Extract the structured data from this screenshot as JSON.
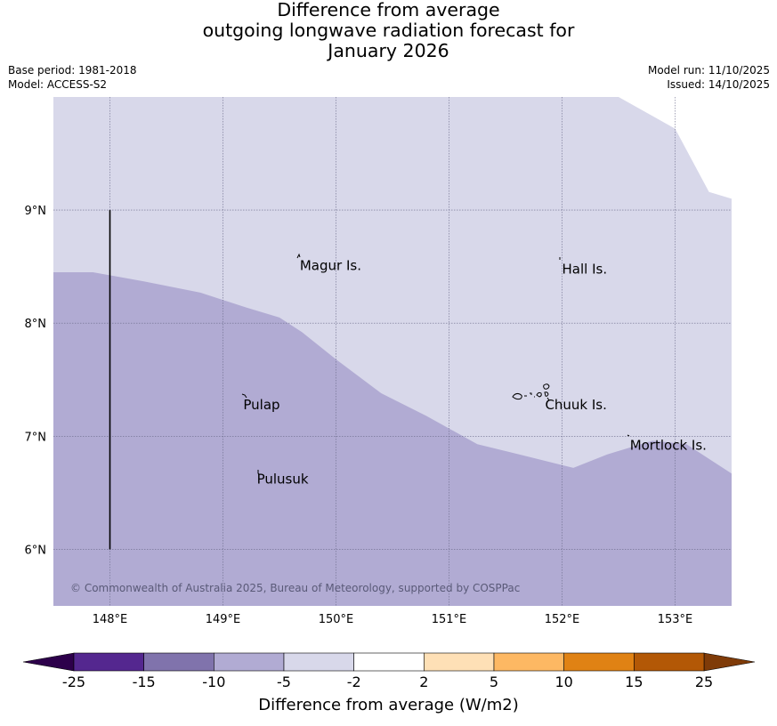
{
  "title": {
    "line1": "Difference from average",
    "line2": "outgoing longwave radiation forecast for",
    "line3": "January 2026"
  },
  "meta": {
    "base_period": "Base period: 1981-2018",
    "model": "Model: ACCESS-S2",
    "model_run": "Model run: 11/10/2025",
    "issued": "Issued: 14/10/2025"
  },
  "map": {
    "lon_range": [
      147.5,
      153.5
    ],
    "lat_range": [
      5.5,
      10.0
    ],
    "lon_ticks": [
      {
        "value": 148,
        "label": "148°E"
      },
      {
        "value": 149,
        "label": "149°E"
      },
      {
        "value": 150,
        "label": "150°E"
      },
      {
        "value": 151,
        "label": "151°E"
      },
      {
        "value": 152,
        "label": "152°E"
      },
      {
        "value": 153,
        "label": "153°E"
      }
    ],
    "lat_ticks": [
      {
        "value": 9,
        "label": "9°N"
      },
      {
        "value": 8,
        "label": "8°N"
      },
      {
        "value": 7,
        "label": "7°N"
      },
      {
        "value": 6,
        "label": "6°N"
      }
    ],
    "fields": {
      "minus5_to_minus2_color": "#d8d8ea",
      "minus10_to_minus5_color": "#b1abd3"
    },
    "boundary_lonlat": [
      [
        147.5,
        8.45
      ],
      [
        147.85,
        8.45
      ],
      [
        148.3,
        8.37
      ],
      [
        148.8,
        8.27
      ],
      [
        149.2,
        8.14
      ],
      [
        149.5,
        8.05
      ],
      [
        149.7,
        7.92
      ],
      [
        150.0,
        7.68
      ],
      [
        150.4,
        7.38
      ],
      [
        150.8,
        7.18
      ],
      [
        151.25,
        6.93
      ],
      [
        151.7,
        6.82
      ],
      [
        152.1,
        6.72
      ],
      [
        152.4,
        6.84
      ],
      [
        152.8,
        6.96
      ],
      [
        153.1,
        6.93
      ],
      [
        153.3,
        6.8
      ],
      [
        153.5,
        6.67
      ]
    ],
    "upper_cut_lonlat": [
      [
        152.5,
        10.0
      ],
      [
        153.0,
        9.72
      ],
      [
        153.3,
        9.16
      ],
      [
        153.5,
        9.1
      ]
    ],
    "meridian_line": {
      "lon": 148.0,
      "lat_from": 6.0,
      "lat_to": 9.0
    },
    "places": [
      {
        "name": "Magur Is.",
        "lon": 149.68,
        "lat": 8.58
      },
      {
        "name": "Hall Is.",
        "lon": 152.0,
        "lat": 8.55
      },
      {
        "name": "Pulap",
        "lon": 149.18,
        "lat": 7.35
      },
      {
        "name": "Chuuk Is.",
        "lon": 151.85,
        "lat": 7.35
      },
      {
        "name": "Mortlock Is.",
        "lon": 152.6,
        "lat": 6.99
      },
      {
        "name": "Pulusuk",
        "lon": 149.3,
        "lat": 6.69
      }
    ],
    "copyright": "© Commonwealth of Australia 2025, Bureau of Meteorology, supported by COSPPac"
  },
  "colorbar": {
    "label": "Difference from average (W/m2)",
    "tick_labels": [
      "-25",
      "-15",
      "-10",
      "-5",
      "-2",
      "2",
      "5",
      "10",
      "15",
      "25"
    ],
    "bins": [
      {
        "from": "-25",
        "to": "-15",
        "color": "#54278f"
      },
      {
        "from": "-15",
        "to": "-10",
        "color": "#8073ac"
      },
      {
        "from": "-10",
        "to": "-5",
        "color": "#b1abd3"
      },
      {
        "from": "-5",
        "to": "-2",
        "color": "#d8d8ea"
      },
      {
        "from": "-2",
        "to": "2",
        "color": "#ffffff"
      },
      {
        "from": "2",
        "to": "5",
        "color": "#fee0b6"
      },
      {
        "from": "5",
        "to": "10",
        "color": "#fdb863"
      },
      {
        "from": "10",
        "to": "15",
        "color": "#e08214"
      },
      {
        "from": "15",
        "to": "25",
        "color": "#b35806"
      }
    ],
    "extend_low_color": "#2d004b",
    "extend_high_color": "#7f3b08"
  }
}
